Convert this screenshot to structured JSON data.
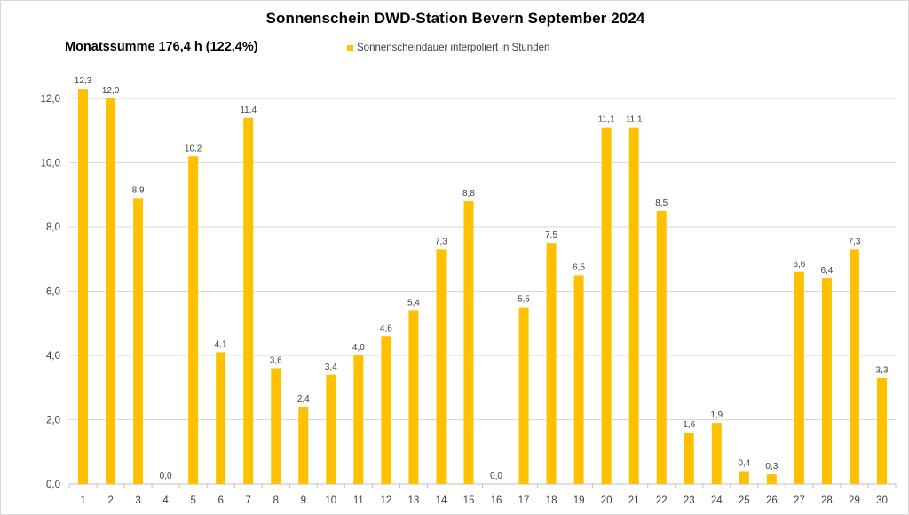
{
  "chart_data": {
    "type": "bar",
    "title": "Sonnenschein  DWD-Station  Bevern September 2024",
    "subtitle": "Monatssumme 176,4 h (122,4%)",
    "categories": [
      "1",
      "2",
      "3",
      "4",
      "5",
      "6",
      "7",
      "8",
      "9",
      "10",
      "11",
      "12",
      "13",
      "14",
      "15",
      "16",
      "17",
      "18",
      "19",
      "20",
      "21",
      "22",
      "23",
      "24",
      "25",
      "26",
      "27",
      "28",
      "29",
      "30"
    ],
    "series": [
      {
        "name": "Sonnenscheindauer interpoliert in Stunden",
        "values": [
          12.3,
          12.0,
          8.9,
          0.0,
          10.2,
          4.1,
          11.4,
          3.6,
          2.4,
          3.4,
          4.0,
          4.6,
          5.4,
          7.3,
          8.8,
          0.0,
          5.5,
          7.5,
          6.5,
          11.1,
          11.1,
          8.5,
          1.6,
          1.9,
          0.4,
          0.3,
          6.6,
          6.4,
          7.3,
          3.3
        ],
        "labels": [
          "12,3",
          "12,0",
          "8,9",
          "0,0",
          "10,2",
          "4,1",
          "11,4",
          "3,6",
          "2,4",
          "3,4",
          "4,0",
          "4,6",
          "5,4",
          "7,3",
          "8,8",
          "0,0",
          "5,5",
          "7,5",
          "6,5",
          "11,1",
          "11,1",
          "8,5",
          "1,6",
          "1,9",
          "0,4",
          "0,3",
          "6,6",
          "6,4",
          "7,3",
          "3,3"
        ]
      }
    ],
    "yticks": [
      0,
      2,
      4,
      6,
      8,
      10,
      12
    ],
    "ytick_labels": [
      "0,0",
      "2,0",
      "4,0",
      "6,0",
      "8,0",
      "10,0",
      "12,0"
    ],
    "ylim": [
      0,
      12.3
    ],
    "grid": true,
    "legend_position": "top-center",
    "colors": {
      "bar": "#ffc000",
      "grid": "#d9d9d9",
      "text": "#404040"
    }
  }
}
